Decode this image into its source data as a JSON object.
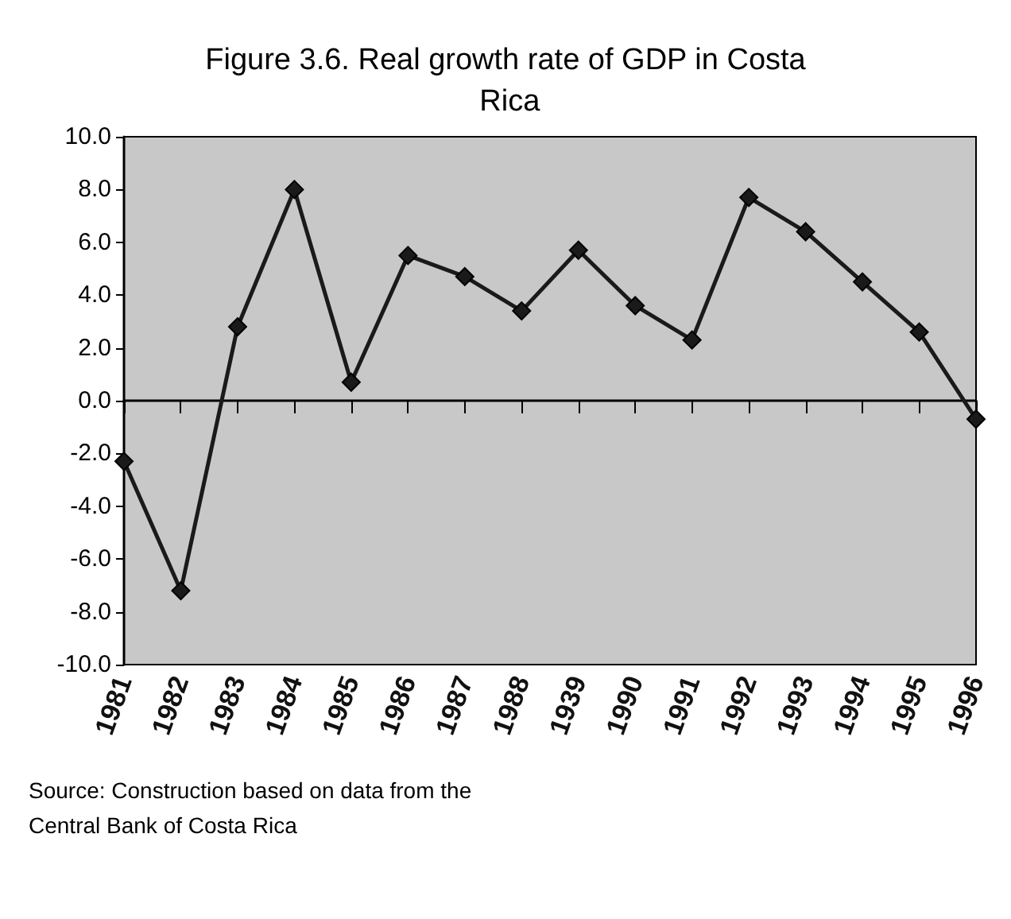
{
  "chart_data": {
    "type": "line",
    "title": "Figure 3.6. Real growth rate of GDP in Costa Rica",
    "categories": [
      "1981",
      "1982",
      "1983",
      "1984",
      "1985",
      "1986",
      "1987",
      "1988",
      "1939",
      "1990",
      "1991",
      "1992",
      "1993",
      "1994",
      "1995",
      "1996"
    ],
    "series": [
      {
        "color": "#1a1a1a",
        "values": [
          -2.3,
          -7.2,
          2.8,
          8.0,
          0.7,
          5.5,
          4.7,
          3.4,
          5.7,
          3.6,
          2.3,
          7.7,
          6.4,
          4.5,
          2.6,
          -0.7
        ]
      }
    ],
    "ylim": [
      -10,
      10
    ],
    "yticks": [
      {
        "value": -10,
        "label": "-10.0"
      },
      {
        "value": -8,
        "label": "-8.0"
      },
      {
        "value": -6,
        "label": "-6.0"
      },
      {
        "value": -4,
        "label": "-4.0"
      },
      {
        "value": -2,
        "label": "-2.0"
      },
      {
        "value": 0,
        "label": "0.0"
      },
      {
        "value": 2,
        "label": "2.0"
      },
      {
        "value": 4,
        "label": "4.0"
      },
      {
        "value": 6,
        "label": "6.0"
      },
      {
        "value": 8,
        "label": "8.0"
      },
      {
        "value": 10,
        "label": "10.0"
      }
    ],
    "marker": "diamond",
    "line_style": "solid",
    "annotations": [
      "Source: Construction based on data from the Central Bank of Costa Rica"
    ]
  }
}
